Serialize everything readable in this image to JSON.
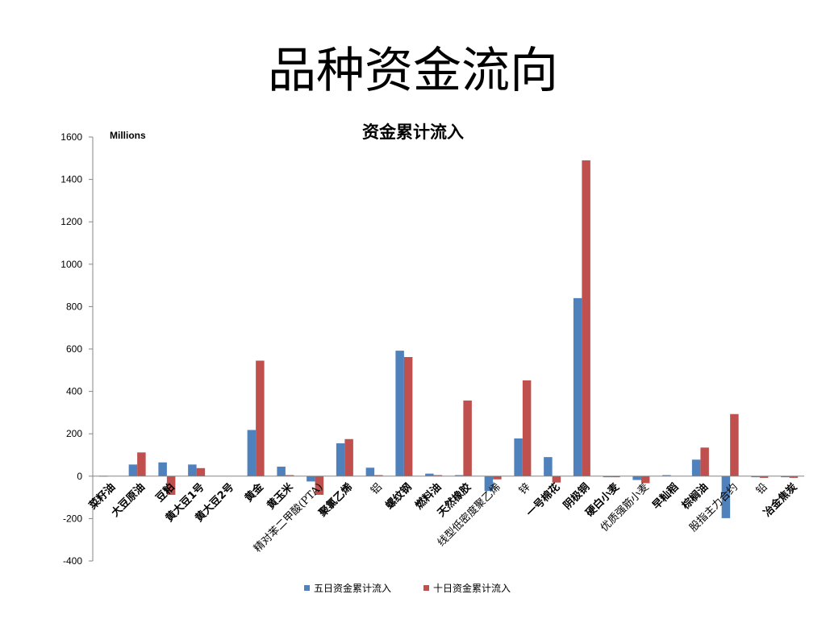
{
  "slide": {
    "title": "品种资金流向"
  },
  "chart_data": {
    "type": "bar",
    "title": "资金累计流入",
    "unit_label": "Millions",
    "xlabel": "",
    "ylabel": "",
    "ylim": [
      -400,
      1600
    ],
    "yticks": [
      -400,
      -200,
      0,
      200,
      400,
      600,
      800,
      1000,
      1200,
      1400,
      1600
    ],
    "grid": false,
    "legend_position": "bottom",
    "categories": [
      "菜籽油",
      "大豆原油",
      "豆粕",
      "黄大豆1号",
      "黄大豆2号",
      "黄金",
      "黄玉米",
      "精对苯二甲酸(PTA)",
      "聚氯乙烯",
      "铝",
      "螺纹钢",
      "燃料油",
      "天然橡胶",
      "线型低密度聚乙烯",
      "锌",
      "一号棉花",
      "阴极铜",
      "硬白小麦",
      "优质强筋小麦",
      "早籼稻",
      "棕榈油",
      "股指主力合约",
      "铅",
      "冶金焦炭"
    ],
    "category_styles": [
      "bold",
      "bold",
      "bold",
      "bold",
      "bold",
      "bold",
      "bold",
      "serif",
      "bold",
      "serif",
      "bold",
      "bold",
      "bold",
      "serif",
      "serif",
      "bold",
      "bold",
      "bold",
      "serif",
      "bold",
      "bold",
      "serif",
      "serif",
      "bold"
    ],
    "series": [
      {
        "name": "五日资金累计流入",
        "color": "#4F81BD",
        "values": [
          2,
          55,
          65,
          55,
          0,
          218,
          45,
          -25,
          155,
          40,
          592,
          12,
          5,
          -70,
          178,
          90,
          840,
          -5,
          -18,
          5,
          78,
          -198,
          -5,
          -5
        ]
      },
      {
        "name": "十日资金累计流入",
        "color": "#C0504D",
        "values": [
          0,
          112,
          -88,
          38,
          0,
          545,
          5,
          -88,
          175,
          5,
          562,
          5,
          357,
          -15,
          452,
          -30,
          1490,
          -5,
          -33,
          0,
          135,
          293,
          -8,
          -8
        ]
      }
    ]
  }
}
